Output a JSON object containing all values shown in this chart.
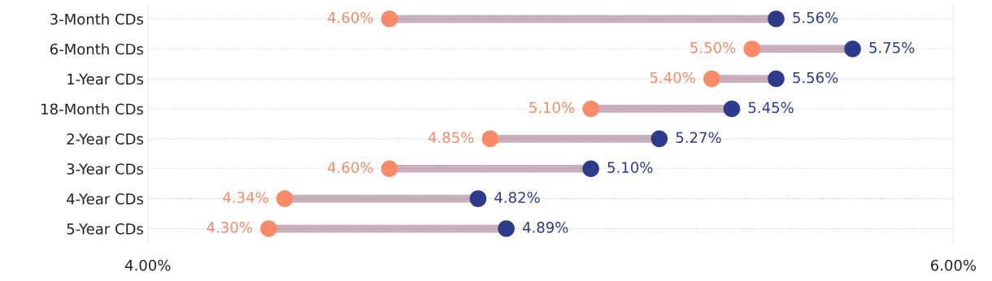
{
  "chart_data": {
    "type": "scatter",
    "categories": [
      "3-Month CDs",
      "6-Month CDs",
      "1-Year CDs",
      "18-Month CDs",
      "2-Year CDs",
      "3-Year CDs",
      "4-Year CDs",
      "5-Year CDs"
    ],
    "series": [
      {
        "color": "#fc8a68",
        "values": [
          4.6,
          5.5,
          5.4,
          5.1,
          4.85,
          4.6,
          4.34,
          4.3
        ],
        "value_labels": [
          "4.60%",
          "5.50%",
          "5.40%",
          "5.10%",
          "4.85%",
          "4.60%",
          "4.34%",
          "4.30%"
        ]
      },
      {
        "color": "#2e3a8c",
        "values": [
          5.56,
          5.75,
          5.56,
          5.45,
          5.27,
          5.1,
          4.82,
          4.89
        ],
        "value_labels": [
          "5.56%",
          "5.75%",
          "5.56%",
          "5.45%",
          "5.27%",
          "5.10%",
          "4.82%",
          "4.89%"
        ]
      }
    ],
    "orientation": "horizontal",
    "xlim": [
      4.0,
      6.0
    ],
    "xticks": [
      {
        "value": 4.0,
        "label": "4.00%"
      },
      {
        "value": 6.0,
        "label": "6.00%"
      }
    ],
    "grid": true,
    "marker": "circle"
  }
}
